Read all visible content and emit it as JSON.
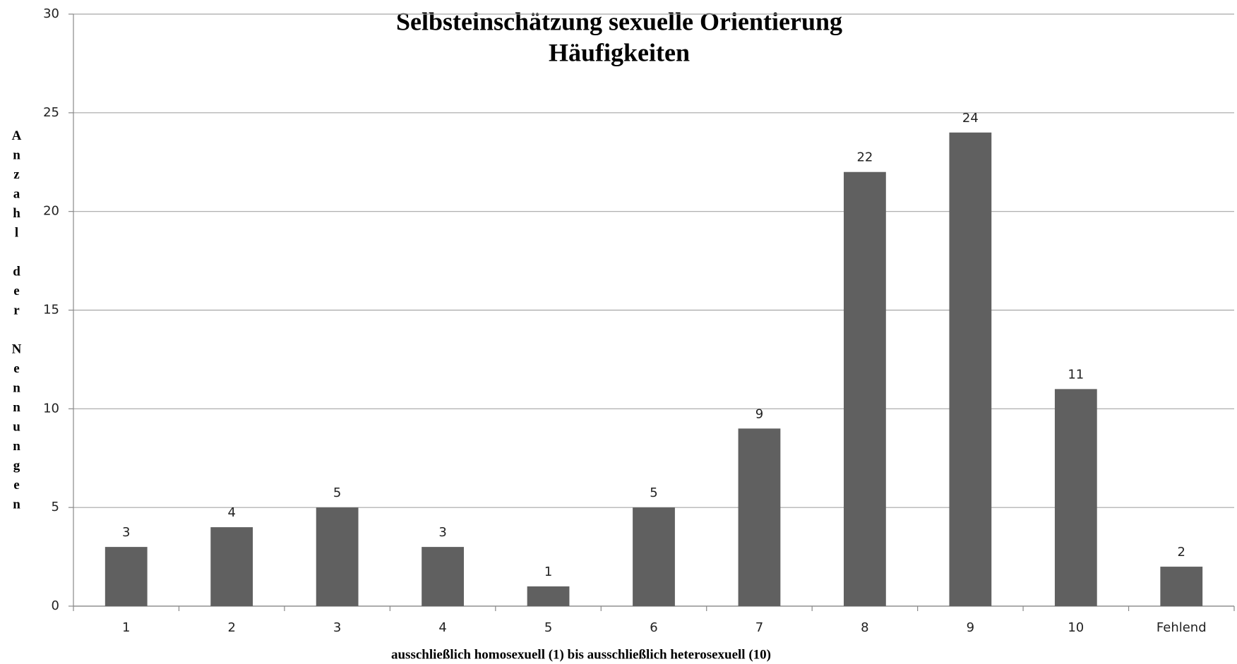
{
  "chart_data": {
    "type": "bar",
    "title": "Selbsteinschätzung sexuelle Orientierung",
    "subtitle": "Häufigkeiten",
    "x_label": "ausschließlich homosexuell (1) bis ausschließlich heterosexuell (10)",
    "y_label": "Anzahl der Nennungen",
    "categories": [
      "1",
      "2",
      "3",
      "4",
      "5",
      "6",
      "7",
      "8",
      "9",
      "10",
      "Fehlend"
    ],
    "values": [
      3,
      4,
      5,
      3,
      1,
      5,
      9,
      22,
      24,
      11,
      2
    ],
    "color": "#606060",
    "ylim": [
      0,
      30
    ],
    "yticks": [
      0,
      5,
      10,
      15,
      20,
      25,
      30
    ],
    "grid": true
  }
}
